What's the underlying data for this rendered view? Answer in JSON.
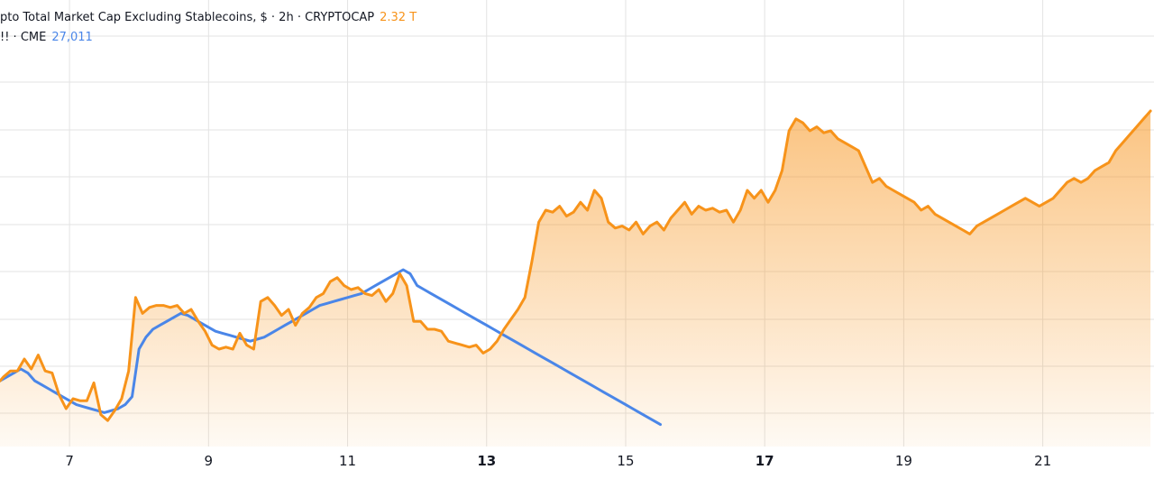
{
  "legend": {
    "row1": {
      "text": "pto Total Market Cap Excluding Stablecoins, $ · 2h · CRYPTOCAP",
      "value": "2.32 T"
    },
    "row2": {
      "text": "!! · CME",
      "value": "27,011"
    }
  },
  "colors": {
    "orange": "#f7931a",
    "blue": "#4a86e8",
    "grey": "#8a8a99",
    "grid": "#e3e3e3"
  },
  "chart_data": {
    "type": "line",
    "x_tick_labels": [
      "7",
      "9",
      "11",
      "13",
      "15",
      "17",
      "19",
      "21"
    ],
    "bold_tick_labels": [
      "13",
      "17"
    ],
    "x_range": [
      6,
      22.6
    ],
    "y_range": [
      0,
      1
    ],
    "series": [
      {
        "key": "cryptocap",
        "style": "area",
        "points": [
          [
            6.0,
            0.12
          ],
          [
            6.05,
            0.13
          ],
          [
            6.15,
            0.145
          ],
          [
            6.25,
            0.145
          ],
          [
            6.35,
            0.175
          ],
          [
            6.45,
            0.15
          ],
          [
            6.55,
            0.185
          ],
          [
            6.65,
            0.145
          ],
          [
            6.75,
            0.14
          ],
          [
            6.85,
            0.085
          ],
          [
            6.95,
            0.05
          ],
          [
            7.05,
            0.075
          ],
          [
            7.15,
            0.07
          ],
          [
            7.25,
            0.07
          ],
          [
            7.35,
            0.115
          ],
          [
            7.45,
            0.035
          ],
          [
            7.55,
            0.02
          ],
          [
            7.65,
            0.045
          ],
          [
            7.75,
            0.075
          ],
          [
            7.85,
            0.145
          ],
          [
            7.95,
            0.33
          ],
          [
            8.05,
            0.29
          ],
          [
            8.15,
            0.305
          ],
          [
            8.25,
            0.31
          ],
          [
            8.35,
            0.31
          ],
          [
            8.45,
            0.305
          ],
          [
            8.55,
            0.31
          ],
          [
            8.65,
            0.29
          ],
          [
            8.75,
            0.3
          ],
          [
            8.85,
            0.27
          ],
          [
            8.95,
            0.245
          ],
          [
            9.05,
            0.21
          ],
          [
            9.15,
            0.2
          ],
          [
            9.25,
            0.205
          ],
          [
            9.35,
            0.2
          ],
          [
            9.45,
            0.24
          ],
          [
            9.55,
            0.21
          ],
          [
            9.65,
            0.2
          ],
          [
            9.75,
            0.32
          ],
          [
            9.85,
            0.33
          ],
          [
            9.95,
            0.31
          ],
          [
            10.05,
            0.285
          ],
          [
            10.15,
            0.3
          ],
          [
            10.25,
            0.26
          ],
          [
            10.35,
            0.29
          ],
          [
            10.45,
            0.305
          ],
          [
            10.55,
            0.33
          ],
          [
            10.65,
            0.34
          ],
          [
            10.75,
            0.37
          ],
          [
            10.85,
            0.38
          ],
          [
            10.95,
            0.36
          ],
          [
            11.05,
            0.35
          ],
          [
            11.15,
            0.355
          ],
          [
            11.25,
            0.34
          ],
          [
            11.35,
            0.335
          ],
          [
            11.45,
            0.35
          ],
          [
            11.55,
            0.32
          ],
          [
            11.65,
            0.34
          ],
          [
            11.75,
            0.39
          ],
          [
            11.85,
            0.36
          ],
          [
            11.95,
            0.27
          ],
          [
            12.05,
            0.27
          ],
          [
            12.15,
            0.25
          ],
          [
            12.25,
            0.25
          ],
          [
            12.35,
            0.245
          ],
          [
            12.45,
            0.22
          ],
          [
            12.55,
            0.215
          ],
          [
            12.65,
            0.21
          ],
          [
            12.75,
            0.205
          ],
          [
            12.85,
            0.21
          ],
          [
            12.95,
            0.19
          ],
          [
            13.05,
            0.2
          ],
          [
            13.15,
            0.22
          ],
          [
            13.25,
            0.25
          ],
          [
            13.35,
            0.275
          ],
          [
            13.45,
            0.3
          ],
          [
            13.55,
            0.33
          ],
          [
            13.65,
            0.42
          ],
          [
            13.75,
            0.52
          ],
          [
            13.85,
            0.55
          ],
          [
            13.95,
            0.545
          ],
          [
            14.05,
            0.56
          ],
          [
            14.15,
            0.535
          ],
          [
            14.25,
            0.545
          ],
          [
            14.35,
            0.57
          ],
          [
            14.45,
            0.55
          ],
          [
            14.55,
            0.6
          ],
          [
            14.65,
            0.58
          ],
          [
            14.75,
            0.52
          ],
          [
            14.85,
            0.505
          ],
          [
            14.95,
            0.51
          ],
          [
            15.05,
            0.5
          ],
          [
            15.15,
            0.52
          ],
          [
            15.25,
            0.49
          ],
          [
            15.35,
            0.51
          ],
          [
            15.45,
            0.52
          ],
          [
            15.55,
            0.5
          ],
          [
            15.65,
            0.53
          ],
          [
            15.75,
            0.55
          ],
          [
            15.85,
            0.57
          ],
          [
            15.95,
            0.54
          ],
          [
            16.05,
            0.56
          ],
          [
            16.15,
            0.55
          ],
          [
            16.25,
            0.555
          ],
          [
            16.35,
            0.545
          ],
          [
            16.45,
            0.55
          ],
          [
            16.55,
            0.52
          ],
          [
            16.65,
            0.55
          ],
          [
            16.75,
            0.6
          ],
          [
            16.85,
            0.58
          ],
          [
            16.95,
            0.6
          ],
          [
            17.05,
            0.57
          ],
          [
            17.15,
            0.6
          ],
          [
            17.25,
            0.65
          ],
          [
            17.35,
            0.75
          ],
          [
            17.45,
            0.78
          ],
          [
            17.55,
            0.77
          ],
          [
            17.65,
            0.75
          ],
          [
            17.75,
            0.76
          ],
          [
            17.85,
            0.745
          ],
          [
            17.95,
            0.75
          ],
          [
            18.05,
            0.73
          ],
          [
            18.15,
            0.72
          ],
          [
            18.25,
            0.71
          ],
          [
            18.35,
            0.7
          ],
          [
            18.45,
            0.66
          ],
          [
            18.55,
            0.62
          ],
          [
            18.65,
            0.63
          ],
          [
            18.75,
            0.61
          ],
          [
            18.85,
            0.6
          ],
          [
            18.95,
            0.59
          ],
          [
            19.05,
            0.58
          ],
          [
            19.15,
            0.57
          ],
          [
            19.25,
            0.55
          ],
          [
            19.35,
            0.56
          ],
          [
            19.45,
            0.54
          ],
          [
            19.55,
            0.53
          ],
          [
            19.65,
            0.52
          ],
          [
            19.75,
            0.51
          ],
          [
            19.85,
            0.5
          ],
          [
            19.95,
            0.49
          ],
          [
            20.05,
            0.51
          ],
          [
            20.15,
            0.52
          ],
          [
            20.25,
            0.53
          ],
          [
            20.35,
            0.54
          ],
          [
            20.45,
            0.55
          ],
          [
            20.55,
            0.56
          ],
          [
            20.65,
            0.57
          ],
          [
            20.75,
            0.58
          ],
          [
            20.85,
            0.57
          ],
          [
            20.95,
            0.56
          ],
          [
            21.05,
            0.57
          ],
          [
            21.15,
            0.58
          ],
          [
            21.25,
            0.6
          ],
          [
            21.35,
            0.62
          ],
          [
            21.45,
            0.63
          ],
          [
            21.55,
            0.62
          ],
          [
            21.65,
            0.63
          ],
          [
            21.75,
            0.65
          ],
          [
            21.85,
            0.66
          ],
          [
            21.95,
            0.67
          ],
          [
            22.05,
            0.7
          ],
          [
            22.15,
            0.72
          ],
          [
            22.25,
            0.74
          ],
          [
            22.35,
            0.76
          ],
          [
            22.45,
            0.78
          ],
          [
            22.55,
            0.8
          ]
        ]
      },
      {
        "key": "cme",
        "style": "line",
        "points": [
          [
            6.0,
            0.12
          ],
          [
            6.1,
            0.13
          ],
          [
            6.2,
            0.14
          ],
          [
            6.3,
            0.15
          ],
          [
            6.4,
            0.14
          ],
          [
            6.5,
            0.12
          ],
          [
            6.6,
            0.11
          ],
          [
            6.7,
            0.1
          ],
          [
            6.8,
            0.09
          ],
          [
            6.9,
            0.08
          ],
          [
            7.0,
            0.07
          ],
          [
            7.1,
            0.06
          ],
          [
            7.2,
            0.055
          ],
          [
            7.3,
            0.05
          ],
          [
            7.4,
            0.045
          ],
          [
            7.5,
            0.04
          ],
          [
            7.6,
            0.045
          ],
          [
            7.7,
            0.05
          ],
          [
            7.8,
            0.06
          ],
          [
            7.9,
            0.08
          ],
          [
            8.0,
            0.2
          ],
          [
            8.1,
            0.23
          ],
          [
            8.2,
            0.25
          ],
          [
            8.3,
            0.26
          ],
          [
            8.4,
            0.27
          ],
          [
            8.5,
            0.28
          ],
          [
            8.6,
            0.29
          ],
          [
            8.7,
            0.285
          ],
          [
            8.8,
            0.275
          ],
          [
            8.9,
            0.265
          ],
          [
            9.0,
            0.255
          ],
          [
            9.1,
            0.245
          ],
          [
            9.2,
            0.24
          ],
          [
            9.3,
            0.235
          ],
          [
            9.4,
            0.23
          ],
          [
            9.5,
            0.225
          ],
          [
            9.6,
            0.22
          ],
          [
            9.7,
            0.225
          ],
          [
            9.8,
            0.23
          ],
          [
            9.9,
            0.24
          ],
          [
            10.0,
            0.25
          ],
          [
            10.1,
            0.26
          ],
          [
            10.2,
            0.27
          ],
          [
            10.3,
            0.28
          ],
          [
            10.4,
            0.29
          ],
          [
            10.5,
            0.3
          ],
          [
            10.6,
            0.31
          ],
          [
            10.7,
            0.315
          ],
          [
            10.8,
            0.32
          ],
          [
            10.9,
            0.325
          ],
          [
            11.0,
            0.33
          ],
          [
            11.1,
            0.335
          ],
          [
            11.2,
            0.34
          ],
          [
            11.3,
            0.35
          ],
          [
            11.4,
            0.36
          ],
          [
            11.5,
            0.37
          ],
          [
            11.6,
            0.38
          ],
          [
            11.7,
            0.39
          ],
          [
            11.8,
            0.4
          ],
          [
            11.9,
            0.39
          ],
          [
            12.0,
            0.36
          ],
          [
            12.1,
            0.35
          ],
          [
            12.2,
            0.34
          ],
          [
            12.3,
            0.33
          ],
          [
            12.4,
            0.32
          ],
          [
            12.5,
            0.31
          ],
          [
            12.6,
            0.3
          ],
          [
            12.7,
            0.29
          ],
          [
            12.8,
            0.28
          ],
          [
            12.9,
            0.27
          ],
          [
            13.0,
            0.26
          ],
          [
            13.1,
            0.25
          ],
          [
            13.2,
            0.24
          ],
          [
            13.3,
            0.23
          ],
          [
            13.4,
            0.22
          ],
          [
            13.5,
            0.21
          ],
          [
            13.6,
            0.2
          ],
          [
            13.7,
            0.19
          ],
          [
            13.8,
            0.18
          ],
          [
            13.9,
            0.17
          ],
          [
            14.0,
            0.16
          ],
          [
            14.1,
            0.15
          ],
          [
            14.2,
            0.14
          ],
          [
            14.3,
            0.13
          ],
          [
            14.4,
            0.12
          ],
          [
            14.5,
            0.11
          ],
          [
            14.6,
            0.1
          ],
          [
            14.7,
            0.09
          ],
          [
            14.8,
            0.08
          ],
          [
            14.9,
            0.07
          ],
          [
            15.0,
            0.06
          ],
          [
            15.1,
            0.05
          ],
          [
            15.2,
            0.04
          ],
          [
            15.3,
            0.03
          ],
          [
            15.4,
            0.02
          ],
          [
            15.5,
            0.01
          ]
        ]
      }
    ]
  }
}
